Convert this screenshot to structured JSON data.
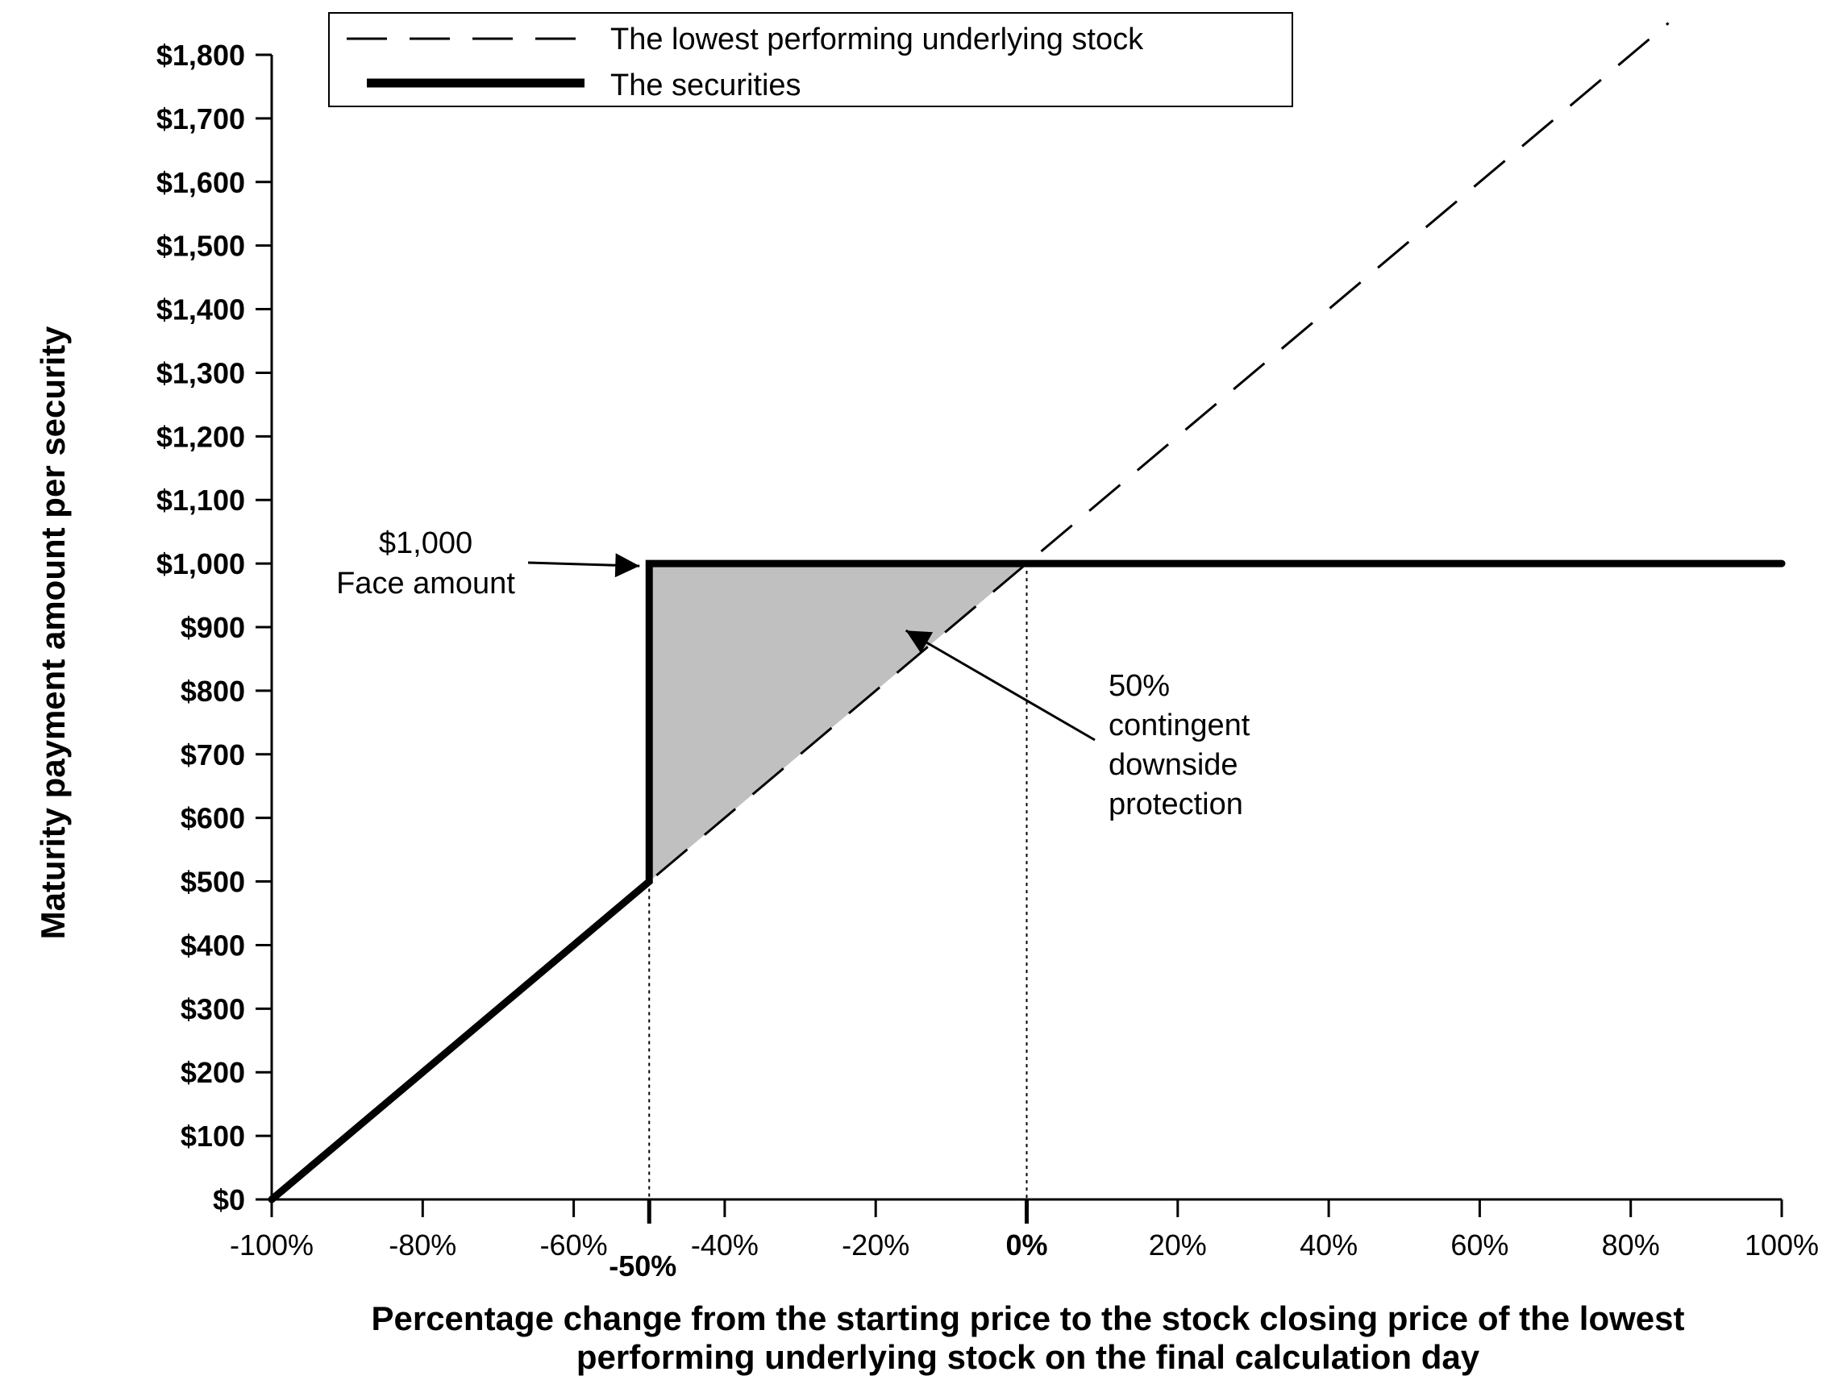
{
  "chart_data": {
    "type": "line",
    "xlabel_lines": [
      "Percentage change from the starting price to the stock closing price of the lowest",
      "performing underlying stock on the final calculation day"
    ],
    "ylabel": "Maturity payment amount per security",
    "xlim": [
      -100,
      100
    ],
    "ylim": [
      0,
      1800
    ],
    "x_ticks": [
      -100,
      -80,
      -60,
      -40,
      -20,
      0,
      20,
      40,
      60,
      80,
      100
    ],
    "x_tick_labels": [
      "-100%",
      "-80%",
      "-60%",
      "-40%",
      "-20%",
      "0%",
      "20%",
      "40%",
      "60%",
      "80%",
      "100%"
    ],
    "y_ticks": [
      0,
      100,
      200,
      300,
      400,
      500,
      600,
      700,
      800,
      900,
      1000,
      1100,
      1200,
      1300,
      1400,
      1500,
      1600,
      1700,
      1800
    ],
    "y_tick_labels": [
      "$0",
      "$100",
      "$200",
      "$300",
      "$400",
      "$500",
      "$600",
      "$700",
      "$800",
      "$900",
      "$1,000",
      "$1,100",
      "$1,200",
      "$1,300",
      "$1,400",
      "$1,500",
      "$1,600",
      "$1,700",
      "$1,800"
    ],
    "extra_x_marker": {
      "value": -50,
      "label": "-50%"
    },
    "series": [
      {
        "name": "The lowest performing underlying stock",
        "style": "dashed",
        "points": [
          [
            -100,
            0
          ],
          [
            85,
            1850
          ]
        ]
      },
      {
        "name": "The securities",
        "style": "solid-thick",
        "points": [
          [
            -100,
            0
          ],
          [
            -50,
            500
          ],
          [
            -50,
            1000
          ],
          [
            100,
            1000
          ]
        ]
      }
    ],
    "shaded_region": [
      [
        -50,
        500
      ],
      [
        -50,
        1000
      ],
      [
        0,
        1000
      ]
    ],
    "reference_lines": [
      {
        "x": -50,
        "y_top": 500,
        "style": "dotted"
      },
      {
        "x": 0,
        "y_top": 1000,
        "style": "dotted"
      }
    ],
    "legend_position": "top",
    "grid": false,
    "annotations": [
      {
        "id": "face",
        "lines": [
          "$1,000",
          "Face amount"
        ],
        "arrow_to": [
          -50,
          1000
        ]
      },
      {
        "id": "protection",
        "lines": [
          "50%",
          "contingent",
          "downside",
          "protection"
        ],
        "arrow_to": [
          -16,
          920
        ]
      }
    ]
  },
  "colors": {
    "line": "#000000",
    "shade": "#c0c0c0",
    "background": "#ffffff"
  }
}
